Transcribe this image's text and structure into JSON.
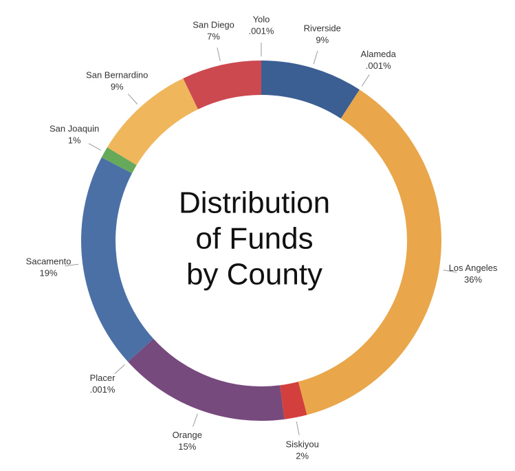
{
  "chart_data": {
    "type": "donut",
    "title": [
      "Distribution",
      "of Funds",
      "by County"
    ],
    "categories": [
      "Riverside",
      "Alameda",
      "Los Angeles",
      "Siskiyou",
      "Orange",
      "Placer",
      "Sacamento",
      "San Joaquin",
      "San Bernardino",
      "San Diego",
      "Yolo"
    ],
    "values": [
      9,
      0.001,
      36,
      2,
      15,
      0.001,
      19,
      1,
      9,
      7,
      0.001
    ],
    "value_labels": [
      "9%",
      ".001%",
      "36%",
      "2%",
      "15%",
      ".001%",
      "19%",
      "1%",
      "9%",
      "7%",
      ".001%"
    ],
    "colors": [
      "#3b5f92",
      "#5a9e56",
      "#e9a64b",
      "#d33f3c",
      "#774a7d",
      "#8c8c8c",
      "#4a70a6",
      "#67a95a",
      "#efb65b",
      "#cc4a4f",
      "#8a6ca3"
    ]
  }
}
